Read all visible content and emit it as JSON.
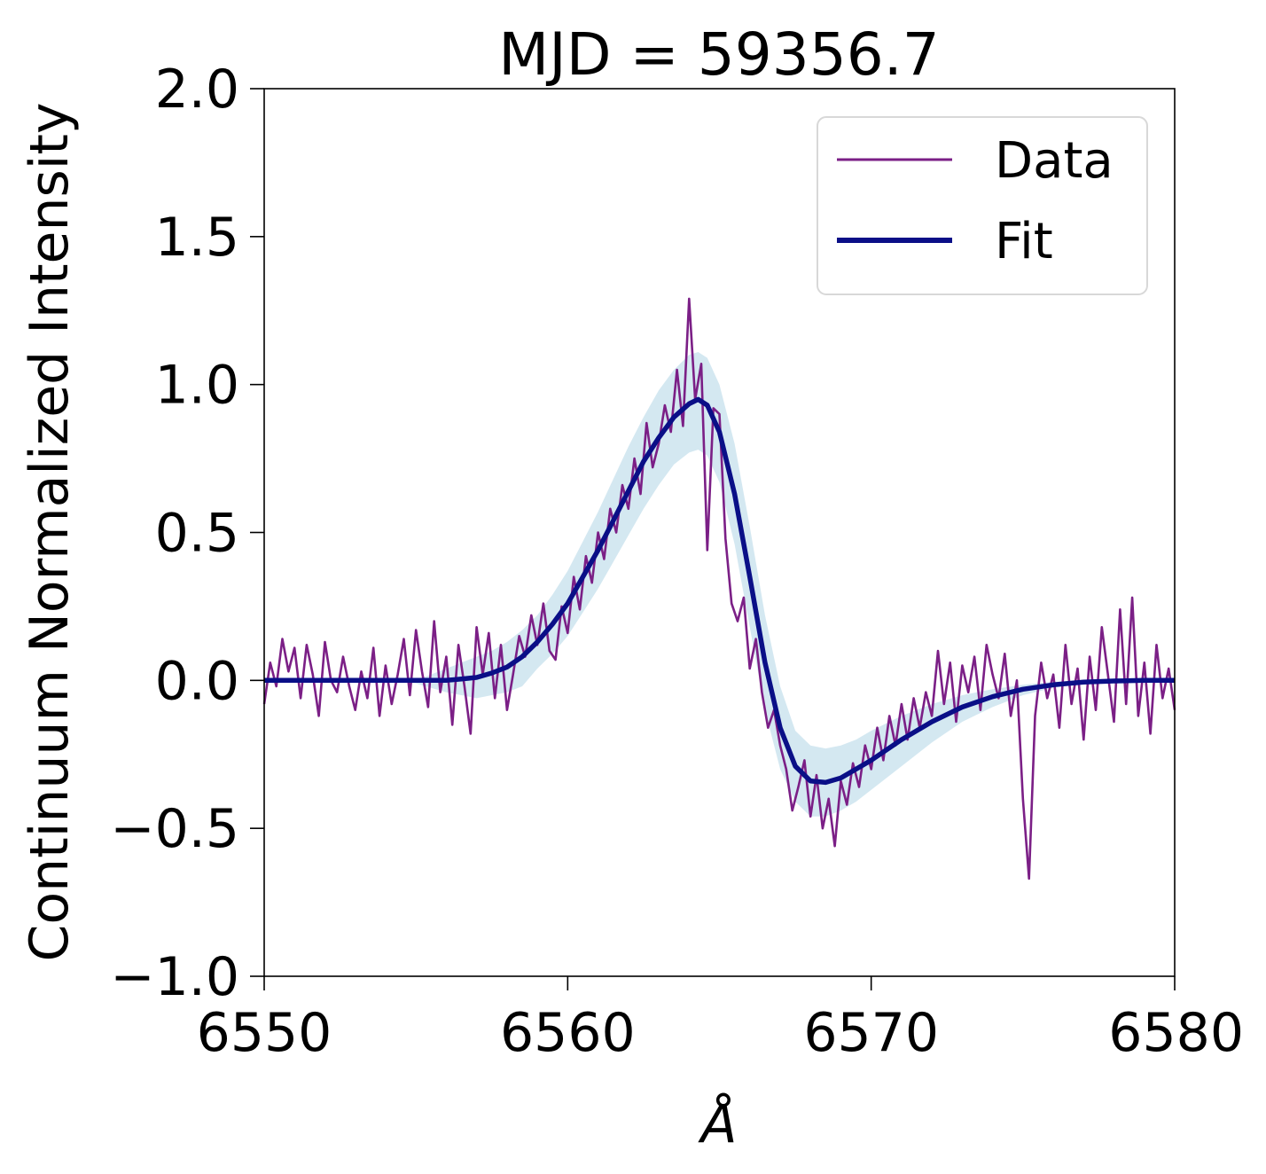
{
  "chart_data": {
    "type": "line",
    "title": "MJD = 59356.7",
    "xlabel": "Å",
    "ylabel": "Continuum Normalized Intensity",
    "xlim": [
      6550,
      6580
    ],
    "ylim": [
      -1.0,
      2.0
    ],
    "xticks": [
      6550,
      6560,
      6570,
      6580
    ],
    "xtick_labels": [
      "6550",
      "6560",
      "6570",
      "6580"
    ],
    "yticks": [
      -1.0,
      -0.5,
      0.0,
      0.5,
      1.0,
      1.5,
      2.0
    ],
    "ytick_labels": [
      "−1.0",
      "−0.5",
      "0.0",
      "0.5",
      "1.0",
      "1.5",
      "2.0"
    ],
    "grid": false,
    "legend": {
      "position": "top-right",
      "entries": [
        "Data",
        "Fit"
      ]
    },
    "colors": {
      "data": "#7b1f86",
      "fit": "#0a0f87",
      "band": "#c6e0ec"
    },
    "series": [
      {
        "name": "Data",
        "style": "thin-noisy-line",
        "x": [
          6550.0,
          6550.2,
          6550.4,
          6550.6,
          6550.8,
          6551.0,
          6551.2,
          6551.4,
          6551.6,
          6551.8,
          6552.0,
          6552.2,
          6552.4,
          6552.6,
          6552.8,
          6553.0,
          6553.2,
          6553.4,
          6553.6,
          6553.8,
          6554.0,
          6554.2,
          6554.4,
          6554.6,
          6554.8,
          6555.0,
          6555.2,
          6555.4,
          6555.6,
          6555.8,
          6556.0,
          6556.2,
          6556.4,
          6556.6,
          6556.8,
          6557.0,
          6557.2,
          6557.4,
          6557.6,
          6557.8,
          6558.0,
          6558.2,
          6558.4,
          6558.6,
          6558.8,
          6559.0,
          6559.2,
          6559.4,
          6559.6,
          6559.8,
          6560.0,
          6560.2,
          6560.4,
          6560.6,
          6560.8,
          6561.0,
          6561.2,
          6561.4,
          6561.6,
          6561.8,
          6562.0,
          6562.2,
          6562.4,
          6562.6,
          6562.8,
          6563.0,
          6563.2,
          6563.4,
          6563.6,
          6563.8,
          6564.0,
          6564.2,
          6564.4,
          6564.6,
          6564.8,
          6565.0,
          6565.2,
          6565.4,
          6565.6,
          6565.8,
          6566.0,
          6566.2,
          6566.4,
          6566.6,
          6566.8,
          6567.0,
          6567.2,
          6567.4,
          6567.6,
          6567.8,
          6568.0,
          6568.2,
          6568.4,
          6568.6,
          6568.8,
          6569.0,
          6569.2,
          6569.4,
          6569.6,
          6569.8,
          6570.0,
          6570.2,
          6570.4,
          6570.6,
          6570.8,
          6571.0,
          6571.2,
          6571.4,
          6571.6,
          6571.8,
          6572.0,
          6572.2,
          6572.4,
          6572.6,
          6572.8,
          6573.0,
          6573.2,
          6573.4,
          6573.6,
          6573.8,
          6574.0,
          6574.2,
          6574.4,
          6574.6,
          6574.8,
          6575.0,
          6575.2,
          6575.4,
          6575.6,
          6575.8,
          6576.0,
          6576.2,
          6576.4,
          6576.6,
          6576.8,
          6577.0,
          6577.2,
          6577.4,
          6577.6,
          6577.8,
          6578.0,
          6578.2,
          6578.4,
          6578.6,
          6578.8,
          6579.0,
          6579.2,
          6579.4,
          6579.6,
          6579.8,
          6580.0
        ],
        "y": [
          -0.08,
          0.06,
          -0.02,
          0.14,
          0.03,
          0.11,
          -0.06,
          0.12,
          0.02,
          -0.12,
          0.13,
          0.0,
          -0.04,
          0.08,
          -0.02,
          -0.1,
          0.03,
          -0.06,
          0.11,
          -0.12,
          0.05,
          -0.08,
          0.02,
          0.14,
          -0.05,
          0.17,
          0.03,
          -0.09,
          0.2,
          -0.04,
          0.08,
          -0.15,
          0.12,
          -0.02,
          -0.18,
          0.18,
          0.02,
          0.16,
          -0.06,
          0.12,
          -0.1,
          0.02,
          0.15,
          0.08,
          0.22,
          0.12,
          0.26,
          0.1,
          0.07,
          0.25,
          0.16,
          0.35,
          0.24,
          0.42,
          0.33,
          0.5,
          0.41,
          0.58,
          0.5,
          0.66,
          0.58,
          0.75,
          0.63,
          0.87,
          0.72,
          0.8,
          0.93,
          0.84,
          1.05,
          0.86,
          1.29,
          0.95,
          1.07,
          0.44,
          0.92,
          0.9,
          0.48,
          0.26,
          0.2,
          0.28,
          0.04,
          0.14,
          -0.04,
          -0.16,
          -0.1,
          -0.22,
          -0.3,
          -0.44,
          -0.36,
          -0.27,
          -0.46,
          -0.32,
          -0.5,
          -0.4,
          -0.56,
          -0.34,
          -0.42,
          -0.28,
          -0.36,
          -0.22,
          -0.3,
          -0.16,
          -0.27,
          -0.12,
          -0.22,
          -0.08,
          -0.2,
          -0.06,
          -0.16,
          -0.04,
          -0.12,
          0.1,
          -0.08,
          0.06,
          -0.14,
          0.05,
          -0.04,
          0.08,
          -0.1,
          0.12,
          0.02,
          -0.06,
          0.09,
          -0.12,
          0.0,
          -0.4,
          -0.67,
          -0.12,
          0.06,
          -0.06,
          0.02,
          -0.16,
          0.12,
          -0.08,
          0.04,
          -0.2,
          0.08,
          -0.1,
          0.18,
          0.02,
          -0.14,
          0.24,
          -0.08,
          0.28,
          -0.12,
          0.06,
          -0.18,
          0.12,
          -0.06,
          0.04,
          -0.1
        ]
      },
      {
        "name": "Fit",
        "style": "thick-smooth-line",
        "x": [
          6550.0,
          6552.0,
          6554.0,
          6555.0,
          6556.0,
          6556.5,
          6557.0,
          6557.5,
          6558.0,
          6558.5,
          6559.0,
          6559.5,
          6560.0,
          6560.5,
          6561.0,
          6561.5,
          6562.0,
          6562.5,
          6563.0,
          6563.5,
          6564.0,
          6564.3,
          6564.6,
          6565.0,
          6565.5,
          6566.0,
          6566.5,
          6567.0,
          6567.5,
          6568.0,
          6568.5,
          6569.0,
          6569.5,
          6570.0,
          6571.0,
          6572.0,
          6573.0,
          6574.0,
          6575.0,
          6576.0,
          6577.0,
          6578.0,
          6579.0,
          6580.0
        ],
        "y": [
          0.0,
          0.0,
          0.0,
          0.0,
          0.0,
          0.005,
          0.01,
          0.025,
          0.045,
          0.08,
          0.13,
          0.19,
          0.26,
          0.35,
          0.44,
          0.54,
          0.64,
          0.74,
          0.82,
          0.89,
          0.935,
          0.95,
          0.93,
          0.84,
          0.63,
          0.35,
          0.06,
          -0.16,
          -0.29,
          -0.34,
          -0.345,
          -0.33,
          -0.3,
          -0.27,
          -0.2,
          -0.14,
          -0.09,
          -0.055,
          -0.03,
          -0.015,
          -0.006,
          -0.002,
          0.0,
          0.0
        ]
      }
    ],
    "uncertainty_band": {
      "x": [
        6550.0,
        6552.0,
        6554.0,
        6555.0,
        6556.0,
        6556.5,
        6557.0,
        6557.5,
        6558.0,
        6558.5,
        6559.0,
        6559.5,
        6560.0,
        6560.5,
        6561.0,
        6561.5,
        6562.0,
        6562.5,
        6563.0,
        6563.5,
        6564.0,
        6564.3,
        6564.6,
        6565.0,
        6565.5,
        6566.0,
        6566.5,
        6567.0,
        6567.5,
        6568.0,
        6568.5,
        6569.0,
        6569.5,
        6570.0,
        6571.0,
        6572.0,
        6573.0,
        6574.0,
        6575.0,
        6576.0,
        6577.0,
        6578.0,
        6579.0,
        6580.0
      ],
      "upper": [
        0.0,
        0.0,
        0.0,
        0.0,
        0.04,
        0.06,
        0.08,
        0.1,
        0.13,
        0.17,
        0.22,
        0.29,
        0.37,
        0.47,
        0.57,
        0.68,
        0.79,
        0.89,
        0.98,
        1.05,
        1.1,
        1.11,
        1.09,
        1.0,
        0.8,
        0.52,
        0.22,
        -0.02,
        -0.17,
        -0.22,
        -0.23,
        -0.22,
        -0.2,
        -0.17,
        -0.12,
        -0.08,
        -0.05,
        -0.03,
        -0.015,
        -0.005,
        0.0,
        0.0,
        0.0,
        0.0
      ],
      "lower": [
        0.0,
        0.0,
        0.0,
        -0.01,
        -0.04,
        -0.05,
        -0.06,
        -0.05,
        -0.04,
        -0.02,
        0.04,
        0.09,
        0.15,
        0.23,
        0.31,
        0.4,
        0.49,
        0.58,
        0.66,
        0.73,
        0.77,
        0.78,
        0.76,
        0.67,
        0.46,
        0.18,
        -0.1,
        -0.3,
        -0.41,
        -0.46,
        -0.46,
        -0.44,
        -0.41,
        -0.37,
        -0.29,
        -0.21,
        -0.14,
        -0.09,
        -0.05,
        -0.025,
        -0.01,
        -0.003,
        0.0,
        0.0
      ]
    }
  }
}
